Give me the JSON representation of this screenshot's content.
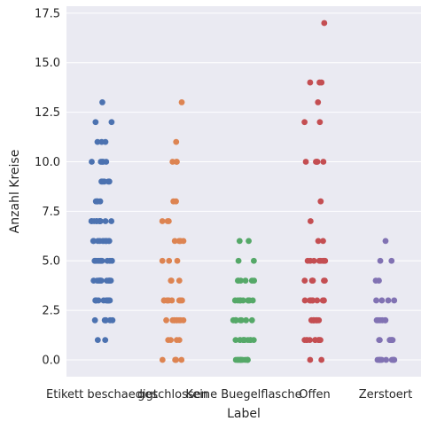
{
  "chart_data": {
    "type": "scatter",
    "subtype": "strip",
    "xlabel": "Label",
    "ylabel": "Anzahl Kreise",
    "categories": [
      "Etikett beschaedigt",
      "geschlossen",
      "Keine Buegelflasche",
      "Offen",
      "Zerstoert"
    ],
    "ylim": [
      -0.85,
      17.85
    ],
    "yticks": [
      0.0,
      2.5,
      5.0,
      7.5,
      10.0,
      12.5,
      15.0,
      17.5
    ],
    "ytick_labels": [
      "0.0",
      "2.5",
      "5.0",
      "7.5",
      "10.0",
      "12.5",
      "15.0",
      "17.5"
    ],
    "grid": true,
    "background": "#eaeaf2",
    "colors": [
      "#4c72b0",
      "#dd8452",
      "#55a868",
      "#c44e52",
      "#8172b3"
    ],
    "series": [
      {
        "category": "Etikett beschaedigt",
        "values": [
          1,
          1,
          2,
          2,
          2,
          2,
          2,
          2,
          3,
          3,
          3,
          3,
          3,
          3,
          3,
          3,
          3,
          3,
          3,
          4,
          4,
          4,
          4,
          4,
          4,
          4,
          4,
          4,
          4,
          4,
          4,
          5,
          5,
          5,
          5,
          5,
          5,
          5,
          5,
          5,
          5,
          5,
          6,
          6,
          6,
          6,
          6,
          6,
          6,
          6,
          6,
          6,
          6,
          7,
          7,
          7,
          7,
          7,
          7,
          7,
          7,
          7,
          7,
          7,
          8,
          8,
          8,
          8,
          9,
          9,
          9,
          9,
          9,
          10,
          10,
          10,
          10,
          10,
          11,
          11,
          11,
          12,
          12,
          13
        ]
      },
      {
        "category": "geschlossen",
        "values": [
          0,
          0,
          0,
          0,
          0,
          1,
          1,
          1,
          1,
          2,
          2,
          2,
          2,
          2,
          2,
          2,
          2,
          2,
          3,
          3,
          3,
          3,
          3,
          3,
          3,
          3,
          3,
          4,
          4,
          4,
          5,
          5,
          5,
          6,
          6,
          6,
          6,
          6,
          7,
          7,
          7,
          8,
          8,
          10,
          10,
          10,
          11,
          13
        ]
      },
      {
        "category": "Keine Buegelflasche",
        "values": [
          0,
          0,
          0,
          0,
          0,
          0,
          0,
          0,
          0,
          0,
          0,
          1,
          1,
          1,
          1,
          1,
          1,
          1,
          1,
          1,
          1,
          1,
          2,
          2,
          2,
          2,
          2,
          2,
          2,
          2,
          2,
          2,
          3,
          3,
          3,
          3,
          3,
          3,
          3,
          3,
          3,
          4,
          4,
          4,
          4,
          4,
          4,
          5,
          5,
          6,
          6
        ]
      },
      {
        "category": "Offen",
        "values": [
          0,
          0,
          1,
          1,
          1,
          1,
          1,
          1,
          1,
          1,
          1,
          1,
          2,
          2,
          2,
          2,
          2,
          2,
          2,
          2,
          2,
          2,
          3,
          3,
          3,
          3,
          3,
          3,
          3,
          3,
          3,
          4,
          4,
          4,
          4,
          4,
          4,
          5,
          5,
          5,
          5,
          5,
          5,
          5,
          5,
          6,
          6,
          7,
          8,
          10,
          10,
          10,
          10,
          10,
          12,
          12,
          13,
          14,
          14,
          14,
          17
        ]
      },
      {
        "category": "Zerstoert",
        "values": [
          0,
          0,
          0,
          0,
          0,
          0,
          0,
          0,
          0,
          0,
          1,
          1,
          1,
          1,
          1,
          1,
          1,
          1,
          2,
          2,
          2,
          2,
          2,
          2,
          3,
          3,
          3,
          3,
          4,
          4,
          5,
          5,
          6
        ]
      }
    ]
  }
}
